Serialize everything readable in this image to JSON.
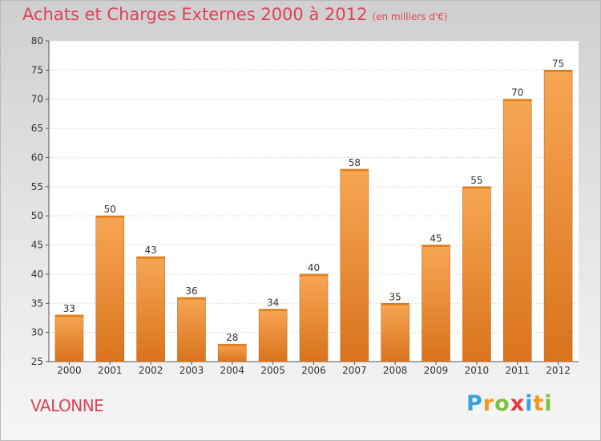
{
  "chart_data": {
    "type": "bar",
    "title": "Achats et Charges Externes 2000 à 2012",
    "unit_label": "(en milliers d'€)",
    "categories": [
      "2000",
      "2001",
      "2002",
      "2003",
      "2004",
      "2005",
      "2006",
      "2007",
      "2008",
      "2009",
      "2010",
      "2011",
      "2012"
    ],
    "values": [
      33,
      50,
      43,
      36,
      28,
      34,
      40,
      58,
      35,
      45,
      55,
      70,
      75
    ],
    "ylim": [
      25,
      80
    ],
    "yticks": [
      25,
      30,
      35,
      40,
      45,
      50,
      55,
      60,
      65,
      70,
      75,
      80
    ],
    "grid": true,
    "bar_color_top": "#f7a654",
    "bar_color_bottom": "#d9731c"
  },
  "place_name": "VALONNE",
  "logo": {
    "letters": [
      "P",
      "r",
      "o",
      "x",
      "i",
      "t",
      "i"
    ],
    "colors": [
      "#3aa0e0",
      "#f29a1e",
      "#7cc242",
      "#e23c3c",
      "#3aa0e0",
      "#f29a1e",
      "#7cc242"
    ]
  }
}
